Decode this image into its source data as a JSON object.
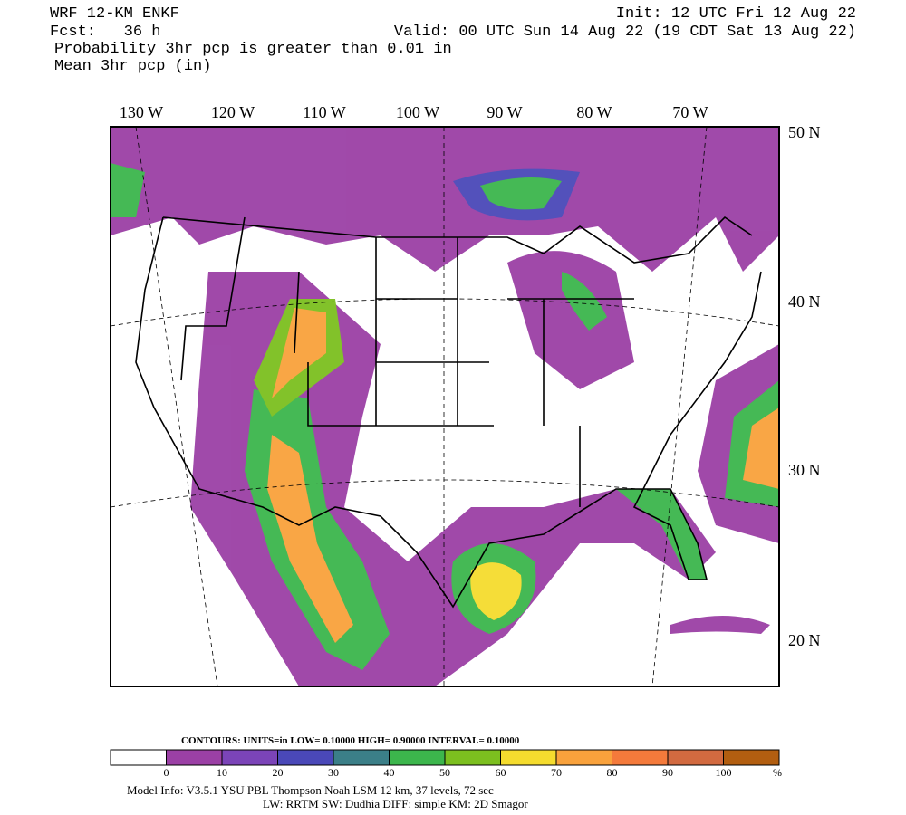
{
  "header": {
    "model": "WRF 12-KM ENKF",
    "init": "Init: 12 UTC Fri 12 Aug 22",
    "fcst": "Fcst:   36 h",
    "valid": "Valid: 00 UTC Sun 14 Aug 22 (19 CDT Sat 13 Aug 22)",
    "field1": "Probability 3hr pcp is greater than 0.01 in",
    "field2": "Mean 3hr pcp (in)"
  },
  "map": {
    "lon_labels": [
      "130 W",
      "120 W",
      "110 W",
      "100 W",
      "90 W",
      "80 W",
      "70 W"
    ],
    "lat_labels": [
      "50 N",
      "40 N",
      "30 N",
      "20 N"
    ]
  },
  "colorbar": {
    "contours": "CONTOURS:  UNITS=in  LOW= 0.10000     HIGH= 0.90000     INTERVAL=  0.10000",
    "colors": [
      "#ffffff",
      "#9b40a5",
      "#7b44b8",
      "#4a48b8",
      "#3b7f88",
      "#3cb64c",
      "#7cbf1f",
      "#f5dc2e",
      "#f9a23c",
      "#f47a3b",
      "#d26a40",
      "#b25e10"
    ],
    "ticks": [
      0,
      10,
      20,
      30,
      40,
      50,
      60,
      70,
      80,
      90,
      100
    ],
    "unit": "%"
  },
  "footer": {
    "line1": "Model Info: V3.5.1        YSU PBL  Thompson      Noah LSM  12 km,    37 levels,    72 sec",
    "line2": "LW: RRTM SW: Dudhia  DIFF: simple KM: 2D Smagor"
  }
}
